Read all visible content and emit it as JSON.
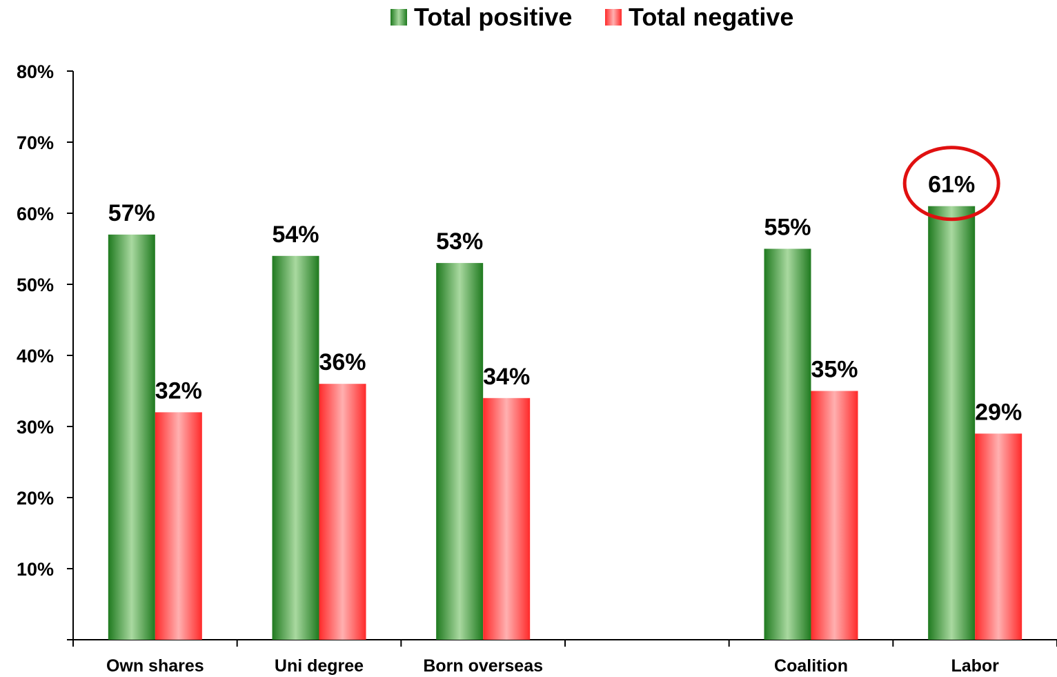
{
  "chart_data": {
    "type": "bar",
    "categories": [
      "Own shares",
      "Uni degree",
      "Born overseas",
      "",
      "Coalition",
      "Labor"
    ],
    "series": [
      {
        "name": "Total positive",
        "values": [
          57,
          54,
          53,
          null,
          55,
          61
        ],
        "labels": [
          "57%",
          "54%",
          "53%",
          "",
          "55%",
          "61%"
        ],
        "color": "#2e8b2e"
      },
      {
        "name": "Total negative",
        "values": [
          32,
          36,
          34,
          null,
          35,
          29
        ],
        "labels": [
          "32%",
          "36%",
          "34%",
          "",
          "35%",
          "29%"
        ],
        "color": "#ff3030"
      }
    ],
    "y_ticks": [
      "10%",
      "20%",
      "30%",
      "40%",
      "50%",
      "60%",
      "70%",
      "80%"
    ],
    "ylim": [
      0,
      80
    ],
    "legend_position": "top-center",
    "highlight": {
      "category": "Labor",
      "series": "Total positive",
      "color": "#e01010"
    }
  }
}
